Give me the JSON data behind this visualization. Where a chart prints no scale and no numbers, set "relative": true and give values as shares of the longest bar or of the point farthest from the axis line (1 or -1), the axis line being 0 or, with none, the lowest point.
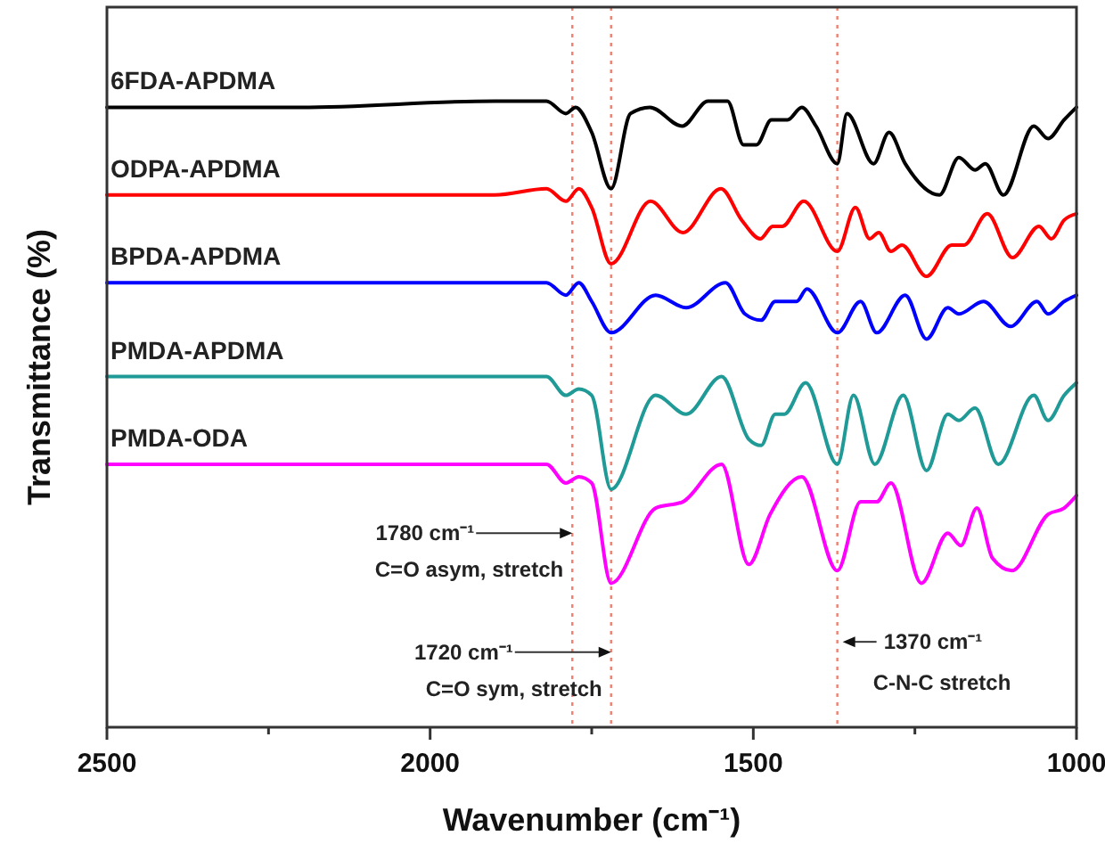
{
  "chart_data": {
    "type": "line",
    "relative": true,
    "xlabel": "Wavenumber (cm⁻¹)",
    "ylabel": "Transmittance (%)",
    "xlim": [
      2500,
      1000
    ],
    "xticks": [
      2500,
      {
        "value": 2250,
        "label": null
      },
      2000,
      {
        "value": 1750,
        "label": null
      },
      1500,
      {
        "value": 1250,
        "label": null
      },
      1000
    ],
    "series": [
      {
        "name": "6FDA-APDMA",
        "color": "#000000",
        "x": [
          2500,
          2200,
          1900,
          1820,
          1790,
          1775,
          1750,
          1720,
          1690,
          1660,
          1610,
          1570,
          1540,
          1515,
          1495,
          1472,
          1447,
          1425,
          1403,
          1370,
          1355,
          1314,
          1290,
          1265,
          1212,
          1182,
          1157,
          1141,
          1113,
          1066,
          1044,
          1019,
          1000
        ],
        "values": [
          0.99,
          0.99,
          1.0,
          1.0,
          0.98,
          0.99,
          0.95,
          0.86,
          0.98,
          0.99,
          0.96,
          1.0,
          1.0,
          0.93,
          0.93,
          0.97,
          0.97,
          0.99,
          0.96,
          0.9,
          0.98,
          0.9,
          0.95,
          0.9,
          0.85,
          0.91,
          0.89,
          0.9,
          0.85,
          0.96,
          0.94,
          0.97,
          0.99
        ]
      },
      {
        "name": "ODPA-APDMA",
        "color": "#ff0000",
        "x": [
          2500,
          2200,
          1900,
          1820,
          1790,
          1770,
          1750,
          1720,
          1659,
          1609,
          1550,
          1518,
          1489,
          1470,
          1455,
          1422,
          1370,
          1342,
          1320,
          1306,
          1287,
          1270,
          1232,
          1193,
          1174,
          1138,
          1099,
          1058,
          1039,
          1019,
          1000
        ],
        "values": [
          0.85,
          0.85,
          0.85,
          0.86,
          0.84,
          0.86,
          0.83,
          0.74,
          0.84,
          0.79,
          0.86,
          0.81,
          0.78,
          0.8,
          0.8,
          0.84,
          0.76,
          0.83,
          0.78,
          0.79,
          0.76,
          0.77,
          0.72,
          0.77,
          0.77,
          0.82,
          0.75,
          0.8,
          0.78,
          0.81,
          0.82
        ]
      },
      {
        "name": "BPDA-APDMA",
        "color": "#0000ff",
        "x": [
          2500,
          2200,
          1900,
          1820,
          1790,
          1770,
          1750,
          1720,
          1651,
          1604,
          1543,
          1513,
          1488,
          1466,
          1433,
          1417,
          1370,
          1334,
          1309,
          1265,
          1232,
          1199,
          1182,
          1144,
          1102,
          1061,
          1044,
          1019,
          1000
        ],
        "values": [
          0.71,
          0.71,
          0.71,
          0.71,
          0.69,
          0.71,
          0.68,
          0.63,
          0.69,
          0.67,
          0.71,
          0.66,
          0.65,
          0.68,
          0.68,
          0.7,
          0.63,
          0.68,
          0.63,
          0.69,
          0.62,
          0.67,
          0.66,
          0.68,
          0.64,
          0.68,
          0.66,
          0.68,
          0.69
        ]
      },
      {
        "name": "PMDA-APDMA",
        "color": "#1f9a96",
        "x": [
          2500,
          2200,
          1900,
          1820,
          1790,
          1770,
          1750,
          1720,
          1651,
          1604,
          1549,
          1507,
          1488,
          1466,
          1452,
          1419,
          1370,
          1345,
          1312,
          1268,
          1232,
          1199,
          1182,
          1157,
          1121,
          1066,
          1044,
          1019,
          1000
        ],
        "values": [
          0.56,
          0.56,
          0.56,
          0.56,
          0.53,
          0.54,
          0.53,
          0.38,
          0.53,
          0.5,
          0.56,
          0.46,
          0.45,
          0.5,
          0.5,
          0.55,
          0.42,
          0.53,
          0.42,
          0.53,
          0.41,
          0.5,
          0.49,
          0.51,
          0.42,
          0.53,
          0.49,
          0.53,
          0.55
        ]
      },
      {
        "name": "PMDA-ODA",
        "color": "#ff00ff",
        "x": [
          2500,
          2200,
          1900,
          1820,
          1790,
          1770,
          1750,
          1720,
          1651,
          1609,
          1549,
          1507,
          1474,
          1425,
          1370,
          1334,
          1309,
          1287,
          1240,
          1199,
          1179,
          1154,
          1130,
          1100,
          1044,
          1019,
          1000
        ],
        "values": [
          0.42,
          0.42,
          0.42,
          0.42,
          0.39,
          0.4,
          0.39,
          0.23,
          0.35,
          0.36,
          0.42,
          0.26,
          0.34,
          0.4,
          0.25,
          0.36,
          0.36,
          0.39,
          0.23,
          0.31,
          0.29,
          0.35,
          0.27,
          0.25,
          0.34,
          0.35,
          0.37
        ]
      }
    ],
    "ref_lines": [
      {
        "axis": "x",
        "value": 1780,
        "color": "#f08070",
        "line_style": "dotted"
      },
      {
        "axis": "x",
        "value": 1720,
        "color": "#f08070",
        "line_style": "dotted"
      },
      {
        "axis": "x",
        "value": 1370,
        "color": "#f08070",
        "line_style": "dotted"
      }
    ],
    "annotations": [
      {
        "text": "1780 cm⁻¹",
        "x": 1780,
        "y": 0.31
      },
      {
        "text": "C=O asym, stretch",
        "x": 1780,
        "y": 0.24
      },
      {
        "text": "1720 cm⁻¹",
        "x": 1720,
        "y": 0.12
      },
      {
        "text": "C=O sym, stretch",
        "x": 1720,
        "y": 0.05
      },
      {
        "text": "1370 cm⁻¹",
        "x": 1370,
        "y": 0.125
      },
      {
        "text": "C-N-C stretch",
        "x": 1370,
        "y": 0.06
      }
    ]
  }
}
